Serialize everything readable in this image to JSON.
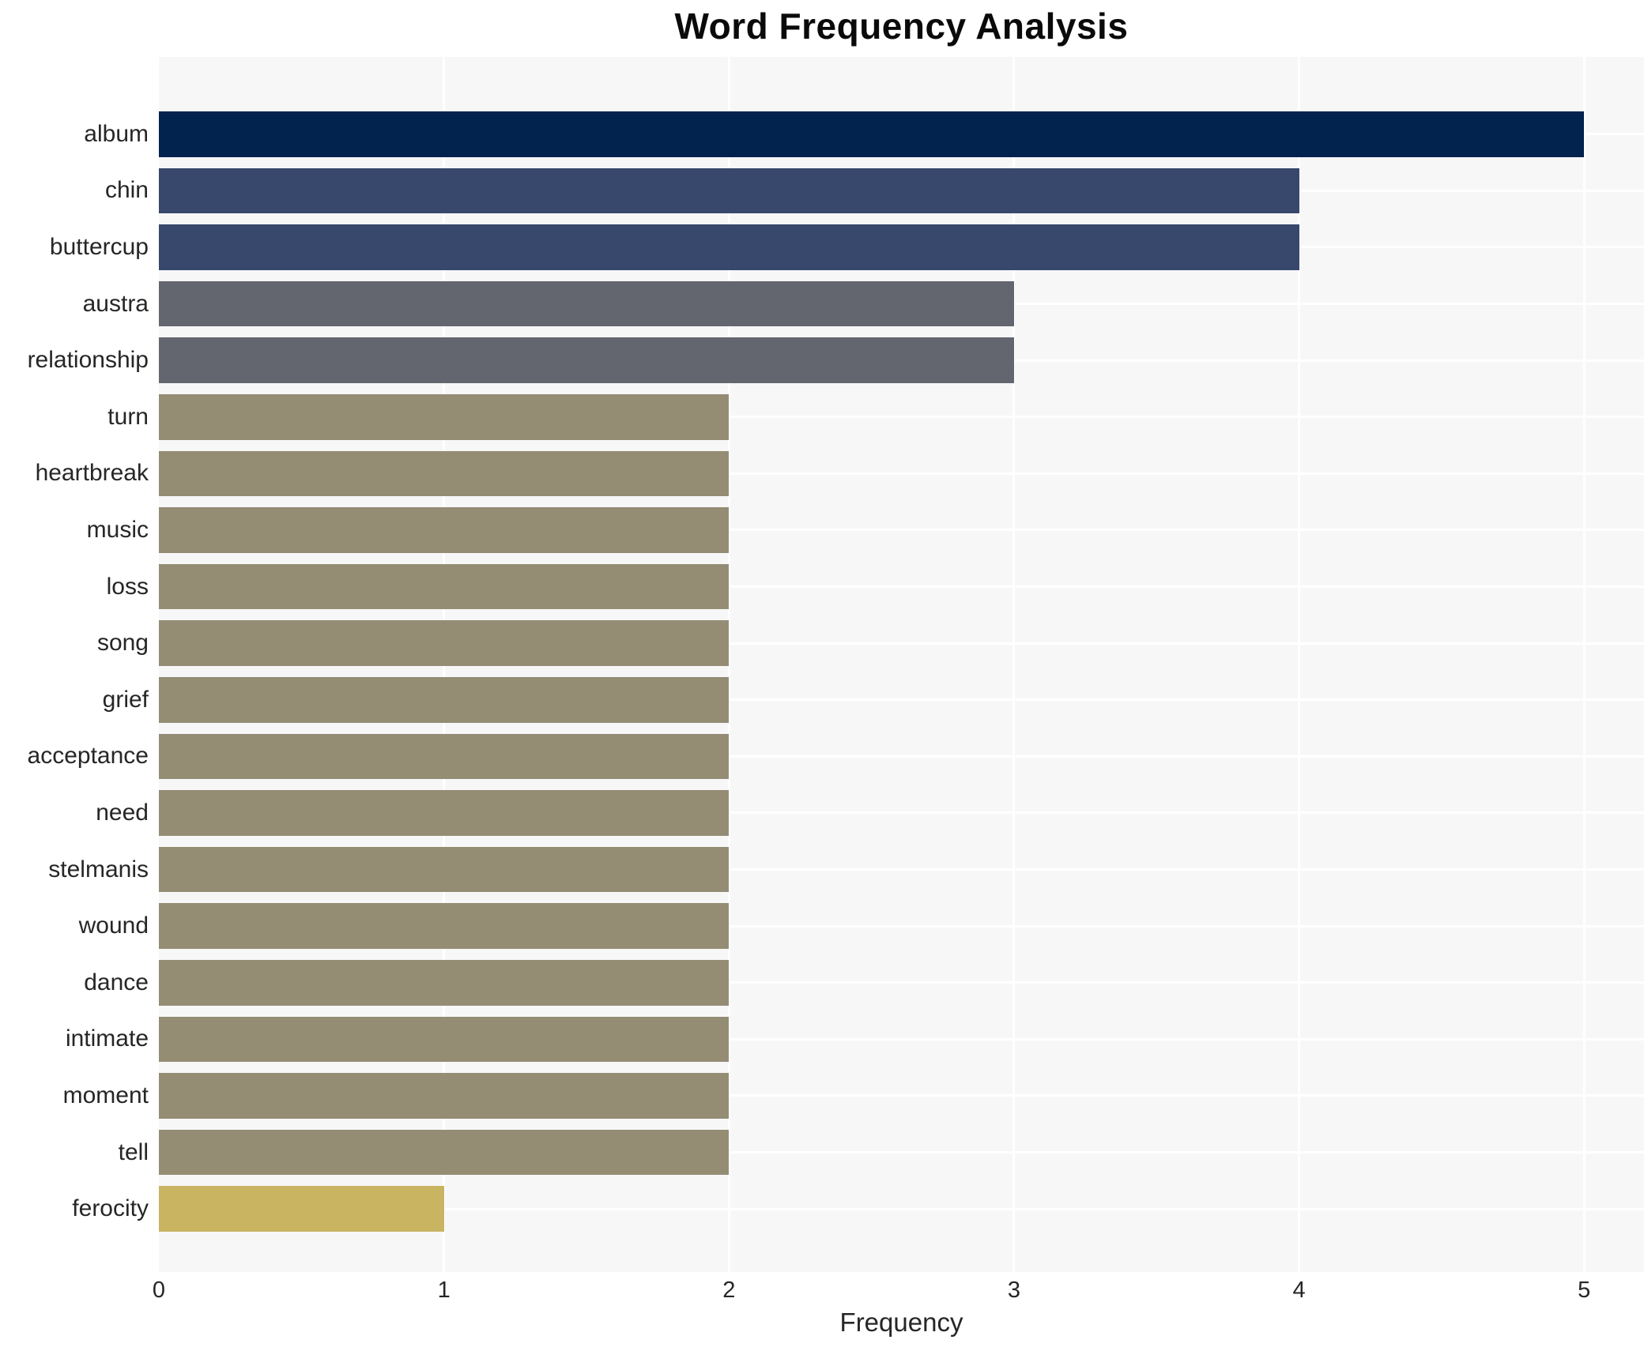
{
  "chart_data": {
    "type": "bar",
    "orientation": "horizontal",
    "title": "Word Frequency Analysis",
    "xlabel": "Frequency",
    "ylabel": "",
    "categories": [
      "album",
      "chin",
      "buttercup",
      "austra",
      "relationship",
      "turn",
      "heartbreak",
      "music",
      "loss",
      "song",
      "grief",
      "acceptance",
      "need",
      "stelmanis",
      "wound",
      "dance",
      "intimate",
      "moment",
      "tell",
      "ferocity"
    ],
    "values": [
      5,
      4,
      4,
      3,
      3,
      2,
      2,
      2,
      2,
      2,
      2,
      2,
      2,
      2,
      2,
      2,
      2,
      2,
      2,
      1
    ],
    "bar_colors": [
      "#02234E",
      "#38486C",
      "#38486C",
      "#64666F",
      "#64666F",
      "#948D74",
      "#948D74",
      "#948D74",
      "#948D74",
      "#948D74",
      "#948D74",
      "#948D74",
      "#948D74",
      "#948D74",
      "#948D74",
      "#948D74",
      "#948D74",
      "#948D74",
      "#948D74",
      "#C9B462"
    ],
    "xticks": [
      0,
      1,
      2,
      3,
      4,
      5
    ],
    "xlim": [
      0,
      5.21
    ],
    "grid": true,
    "grid_color": "#FFFFFF",
    "plot_background": "#F7F7F8",
    "figure_background": "#FFFFFF",
    "legend": false
  }
}
